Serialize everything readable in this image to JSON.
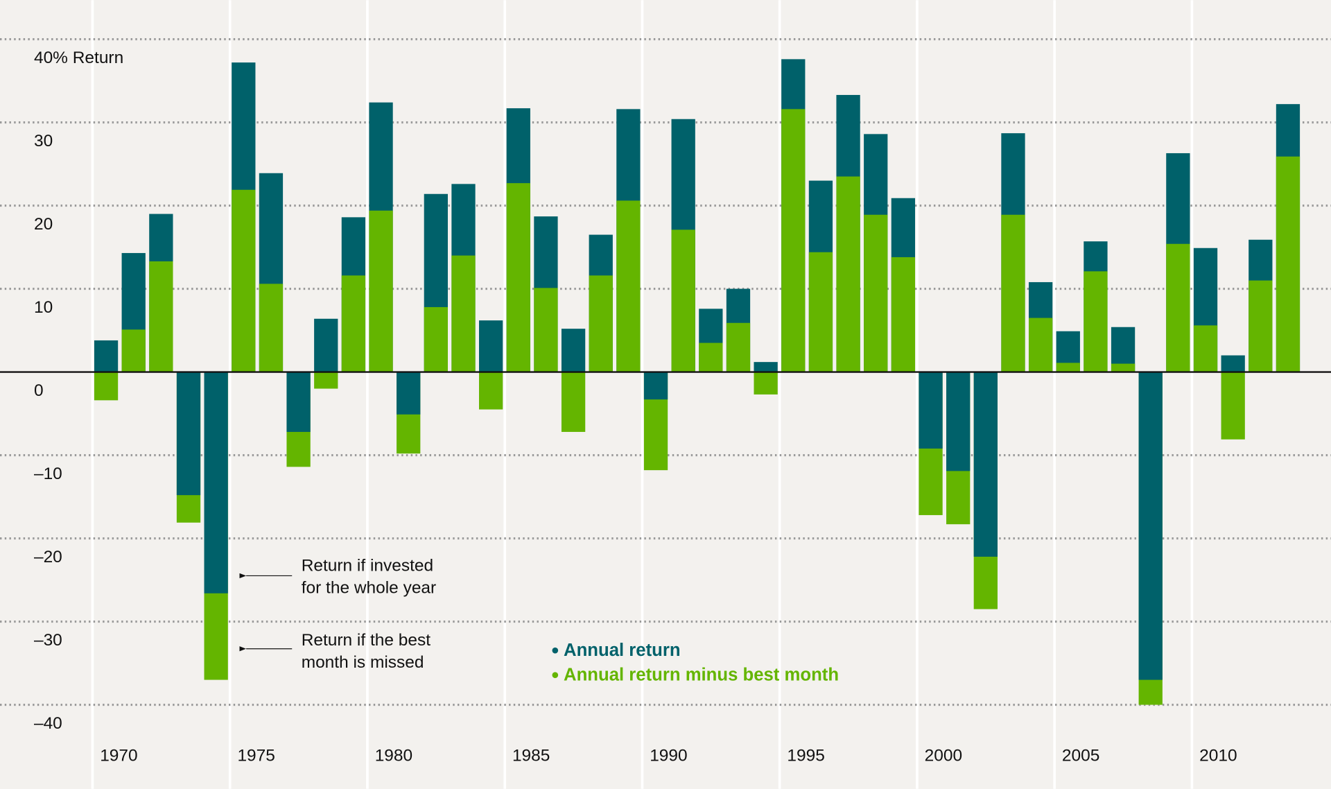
{
  "chart_data": {
    "type": "bar",
    "categories": [
      "1970",
      null,
      null,
      null,
      null,
      "1975",
      null,
      null,
      null,
      null,
      "1980",
      null,
      null,
      null,
      null,
      "1985",
      null,
      null,
      null,
      null,
      "1990",
      null,
      null,
      null,
      null,
      "1995",
      null,
      null,
      null,
      null,
      "2000",
      null,
      null,
      null,
      null,
      "2005",
      null,
      null,
      null,
      null,
      "2010",
      null,
      null,
      null
    ],
    "series": [
      {
        "name": "Annual return",
        "color": "#00616a",
        "values": [
          3.8,
          14.3,
          19.0,
          -14.8,
          -26.6,
          37.2,
          23.9,
          -7.2,
          6.4,
          18.6,
          32.4,
          -5.1,
          21.4,
          22.6,
          6.2,
          31.7,
          18.7,
          5.2,
          16.5,
          31.6,
          -3.3,
          30.4,
          7.6,
          10.0,
          1.2,
          37.6,
          23.0,
          33.3,
          28.6,
          20.9,
          -9.2,
          -11.9,
          -22.2,
          28.7,
          10.8,
          4.9,
          15.7,
          5.4,
          -37.0,
          26.3,
          14.9,
          2.0,
          15.9,
          32.2
        ]
      },
      {
        "name": "Annual return minus best month",
        "color": "#64b500",
        "values": [
          -3.4,
          5.1,
          13.3,
          -18.1,
          -37.0,
          21.9,
          10.6,
          -11.4,
          -2.0,
          11.6,
          19.4,
          -9.8,
          7.8,
          14.0,
          -4.5,
          22.7,
          10.1,
          -7.2,
          11.6,
          20.6,
          -11.8,
          17.1,
          3.5,
          5.9,
          -2.7,
          31.6,
          14.4,
          23.5,
          18.9,
          13.8,
          -17.2,
          -18.3,
          -28.5,
          18.9,
          6.5,
          1.1,
          12.1,
          1.0,
          -40.0,
          15.4,
          5.6,
          -8.1,
          11.0,
          25.9
        ]
      }
    ],
    "ylim": [
      -40,
      40
    ],
    "yticks": [
      {
        "value": 40,
        "label": "40% Return"
      },
      30,
      20,
      10,
      0,
      {
        "value": -10,
        "label": "–10"
      },
      {
        "value": -20,
        "label": "–20"
      },
      {
        "value": -30,
        "label": "–30"
      },
      {
        "value": -40,
        "label": "–40"
      }
    ],
    "grid": true,
    "annotations": [
      {
        "lines": [
          "Return if invested",
          "for the whole year"
        ]
      },
      {
        "lines": [
          "Return if the best",
          "month is missed"
        ]
      }
    ]
  }
}
